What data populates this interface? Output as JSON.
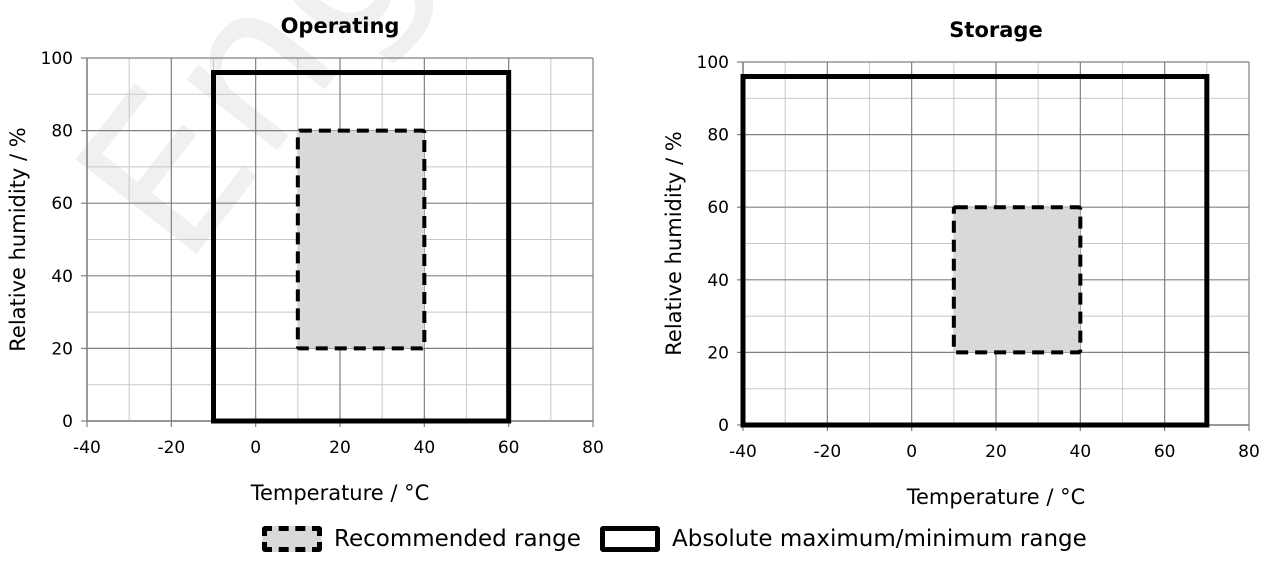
{
  "colors": {
    "recommended_fill": "#d9d9d9",
    "grid_major": "#808080",
    "grid_minor": "#c8c8c8",
    "outline": "#000000"
  },
  "watermark": "Engineer",
  "legend": {
    "recommended_label": "Recommended range",
    "absolute_label": "Absolute maximum/minimum range"
  },
  "chart_data": [
    {
      "type": "area",
      "title": "Operating",
      "xlabel": "Temperature / °C",
      "ylabel": "Relative humidity / %",
      "xlim": [
        -40,
        80
      ],
      "ylim": [
        0,
        100
      ],
      "xticks": [
        -40,
        -20,
        0,
        20,
        40,
        60,
        80
      ],
      "yticks": [
        0,
        20,
        40,
        60,
        80,
        100
      ],
      "grid": true,
      "legend_position": "bottom",
      "series": [
        {
          "name": "Recommended range",
          "style": "dashed-filled",
          "x": [
            10,
            40
          ],
          "y": [
            20,
            80
          ]
        },
        {
          "name": "Absolute maximum/minimum range",
          "style": "solid",
          "x": [
            -10,
            60
          ],
          "y": [
            0,
            96
          ]
        }
      ]
    },
    {
      "type": "area",
      "title": "Storage",
      "xlabel": "Temperature / °C",
      "ylabel": "Relative humidity / %",
      "xlim": [
        -40,
        80
      ],
      "ylim": [
        0,
        100
      ],
      "xticks": [
        -40,
        -20,
        0,
        20,
        40,
        60,
        80
      ],
      "yticks": [
        0,
        20,
        40,
        60,
        80,
        100
      ],
      "grid": true,
      "legend_position": "bottom",
      "series": [
        {
          "name": "Recommended range",
          "style": "dashed-filled",
          "x": [
            10,
            40
          ],
          "y": [
            20,
            60
          ]
        },
        {
          "name": "Absolute maximum/minimum range",
          "style": "solid",
          "x": [
            -40,
            70
          ],
          "y": [
            0,
            96
          ]
        }
      ]
    }
  ]
}
